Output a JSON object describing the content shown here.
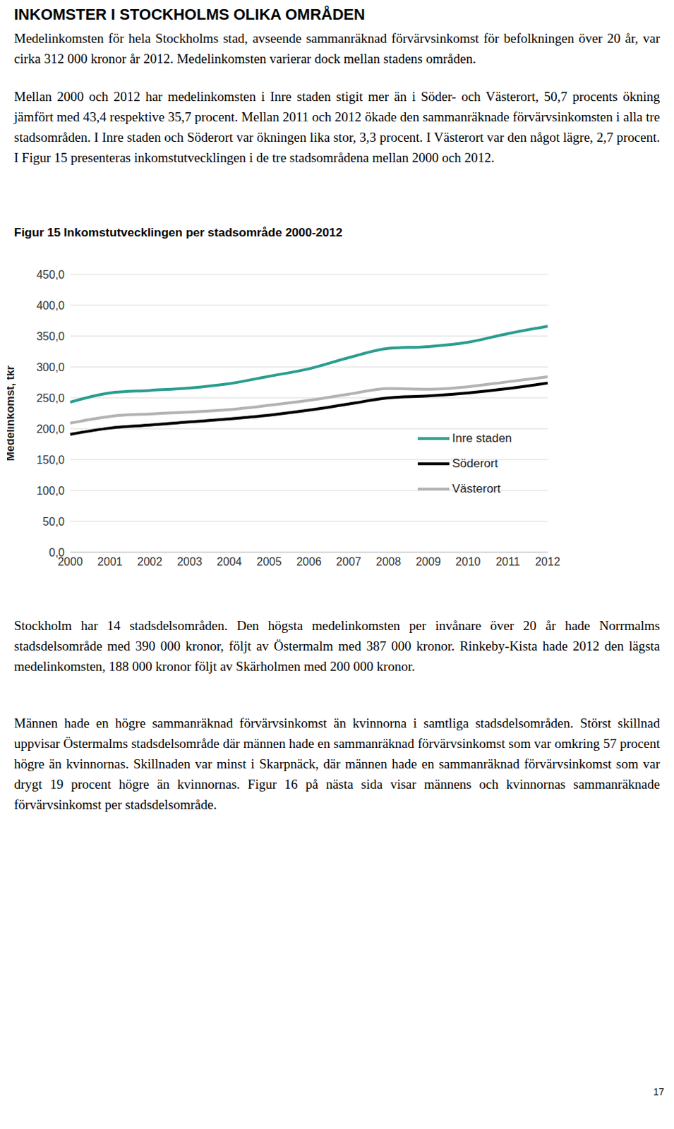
{
  "heading": "INKOMSTER I STOCKHOLMS OLIKA OMRÅDEN",
  "paragraphs_before": [
    "Medelinkomsten för hela Stockholms stad, avseende sammanräknad förvärvsinkomst för befolkningen över 20 år, var cirka 312 000 kronor år 2012. Medelinkomsten varierar dock mellan stadens områden.",
    "Mellan 2000 och 2012 har medelinkomsten i Inre staden stigit mer än i Söder- och Västerort, 50,7 procents ökning jämfört med 43,4 respektive 35,7 procent. Mellan 2011 och 2012 ökade den sammanräknade förvärvsinkomsten i alla tre stadsområden. I Inre staden och Söderort var ökningen lika stor, 3,3 procent. I Västerort var den något lägre, 2,7 procent. I Figur 15 presenteras inkomstutvecklingen i de tre stadsområdena mellan 2000 och 2012."
  ],
  "chart_data": {
    "type": "line",
    "title": "Figur 15 Inkomstutvecklingen per stadsområde 2000-2012",
    "ylabel": "Medelinkomst, tkr",
    "categories": [
      "2000",
      "2001",
      "2002",
      "2003",
      "2004",
      "2005",
      "2006",
      "2007",
      "2008",
      "2009",
      "2010",
      "2011",
      "2012"
    ],
    "series": [
      {
        "name": "Inre staden",
        "color": "#2a9d8f",
        "values": [
          243,
          258,
          262,
          266,
          273,
          285,
          297,
          315,
          330,
          333,
          340,
          354,
          366
        ]
      },
      {
        "name": "Söderort",
        "color": "#000000",
        "values": [
          191,
          201,
          206,
          211,
          216,
          222,
          230,
          240,
          250,
          253,
          258,
          265,
          274
        ]
      },
      {
        "name": "Västerort",
        "color": "#b3b3b3",
        "values": [
          209,
          220,
          224,
          227,
          231,
          238,
          246,
          256,
          265,
          264,
          268,
          276,
          284
        ]
      }
    ],
    "ylim": [
      0,
      450
    ],
    "yticks": [
      {
        "value": 0,
        "label": "0,0"
      },
      {
        "value": 50,
        "label": "50,0"
      },
      {
        "value": 100,
        "label": "100,0"
      },
      {
        "value": 150,
        "label": "150,0"
      },
      {
        "value": 200,
        "label": "200,0"
      },
      {
        "value": 250,
        "label": "250,0"
      },
      {
        "value": 300,
        "label": "300,0"
      },
      {
        "value": 350,
        "label": "350,0"
      },
      {
        "value": 400,
        "label": "400,0"
      },
      {
        "value": 450,
        "label": "450,0"
      }
    ],
    "grid": true,
    "legend": "right"
  },
  "paragraphs_after": [
    "Stockholm har 14 stadsdelsområden. Den högsta medelinkomsten per invånare över 20 år hade Norrmalms stadsdelsområde med 390 000 kronor, följt av Östermalm med 387 000 kronor. Rinkeby-Kista hade 2012 den lägsta medelinkomsten, 188 000 kronor följt av Skärholmen med 200 000 kronor.",
    "Männen hade en högre sammanräknad förvärvsinkomst än kvinnorna i samtliga stadsdelsområden. Störst skillnad uppvisar Östermalms stadsdelsområde där männen hade en sammanräknad förvärvsinkomst som var omkring 57 procent högre än kvinnornas. Skillnaden var minst i Skarpnäck, där männen hade en sammanräknad förvärvsinkomst som var drygt 19 procent högre än kvinnornas. Figur 16 på nästa sida visar männens och kvinnornas sammanräknade förvärvsinkomst per stadsdelsområde."
  ],
  "page_number": "17"
}
